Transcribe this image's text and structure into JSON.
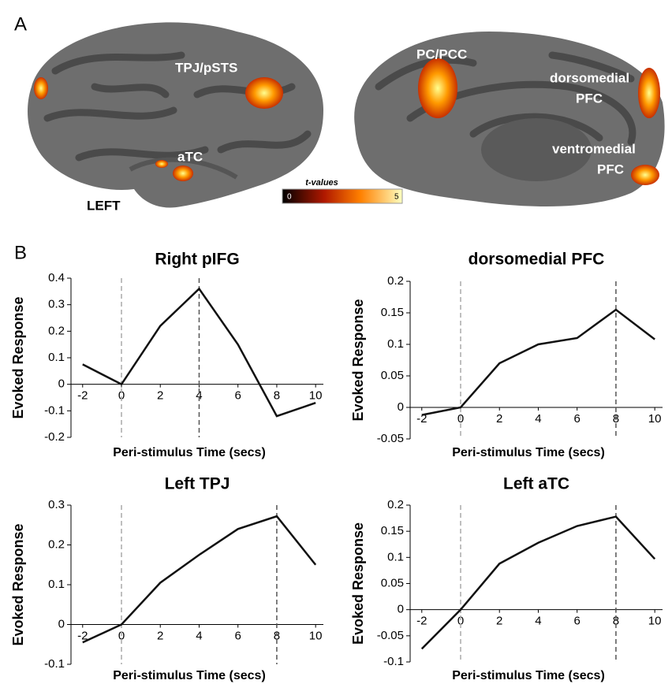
{
  "panel_a": {
    "label": "A",
    "left_labels": [
      "TPJ/pSTS",
      "aTC",
      "LEFT"
    ],
    "right_labels": [
      "PC/PCC",
      "dorsomedial",
      "PFC",
      "ventromedial",
      "PFC"
    ],
    "colorbar": {
      "title": "t-values",
      "min_label": "0",
      "max_label": "5"
    }
  },
  "panel_b_label": "B",
  "chart_data": [
    {
      "type": "line",
      "title": "Right pIFG",
      "x_label": "Peri-stimulus Time (secs)",
      "y_label": "Evoked Response",
      "x": [
        -2,
        0,
        2,
        4,
        6,
        8,
        10
      ],
      "values": [
        0.075,
        0,
        0.22,
        0.36,
        0.15,
        -0.12,
        -0.07
      ],
      "color": "#111111",
      "xlim": [
        -2.6,
        10.4
      ],
      "xticks": [
        -2,
        0,
        2,
        4,
        6,
        8,
        10
      ],
      "ylim": [
        -0.2,
        0.4
      ],
      "yticks": [
        -0.2,
        -0.1,
        0,
        0.1,
        0.2,
        0.3,
        0.4
      ],
      "vlines": [
        {
          "x": 0,
          "color": "#aaaaaa"
        },
        {
          "x": 4,
          "color": "#555555"
        }
      ]
    },
    {
      "type": "line",
      "title": "dorsomedial PFC",
      "x_label": "Peri-stimulus Time (secs)",
      "y_label": "Evoked Response",
      "x": [
        -2,
        0,
        2,
        4,
        6,
        8,
        10
      ],
      "values": [
        -0.012,
        0,
        0.07,
        0.1,
        0.11,
        0.155,
        0.108
      ],
      "color": "#111111",
      "xlim": [
        -2.6,
        10.4
      ],
      "xticks": [
        -2,
        0,
        2,
        4,
        6,
        8,
        10
      ],
      "ylim": [
        -0.05,
        0.2
      ],
      "yticks": [
        -0.05,
        0,
        0.05,
        0.1,
        0.15,
        0.2
      ],
      "vlines": [
        {
          "x": 0,
          "color": "#aaaaaa"
        },
        {
          "x": 8,
          "color": "#555555"
        }
      ]
    },
    {
      "type": "line",
      "title": "Left TPJ",
      "x_label": "Peri-stimulus Time (secs)",
      "y_label": "Evoked Response",
      "x": [
        -2,
        0,
        2,
        4,
        6,
        8,
        10
      ],
      "values": [
        -0.045,
        0,
        0.105,
        0.175,
        0.24,
        0.272,
        0.15
      ],
      "color": "#111111",
      "xlim": [
        -2.6,
        10.4
      ],
      "xticks": [
        -2,
        0,
        2,
        4,
        6,
        8,
        10
      ],
      "ylim": [
        -0.1,
        0.3
      ],
      "yticks": [
        -0.1,
        0,
        0.1,
        0.2,
        0.3
      ],
      "vlines": [
        {
          "x": 0,
          "color": "#aaaaaa"
        },
        {
          "x": 8,
          "color": "#555555"
        }
      ]
    },
    {
      "type": "line",
      "title": "Left aTC",
      "x_label": "Peri-stimulus Time (secs)",
      "y_label": "Evoked Response",
      "x": [
        -2,
        0,
        2,
        4,
        6,
        8,
        10
      ],
      "values": [
        -0.075,
        0,
        0.088,
        0.128,
        0.16,
        0.178,
        0.097
      ],
      "color": "#111111",
      "xlim": [
        -2.6,
        10.4
      ],
      "xticks": [
        -2,
        0,
        2,
        4,
        6,
        8,
        10
      ],
      "ylim": [
        -0.1,
        0.2
      ],
      "yticks": [
        -0.1,
        -0.05,
        0,
        0.05,
        0.1,
        0.15,
        0.2
      ],
      "vlines": [
        {
          "x": 0,
          "color": "#aaaaaa"
        },
        {
          "x": 8,
          "color": "#555555"
        }
      ]
    }
  ]
}
